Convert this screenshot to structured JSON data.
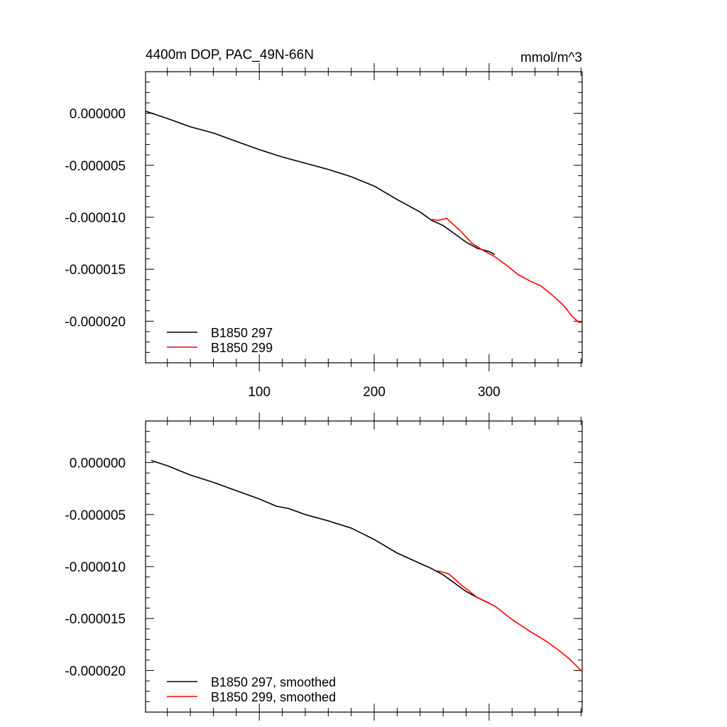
{
  "chart_data": [
    {
      "type": "line",
      "title": "4400m DOP, PAC_49N-66N",
      "units": "mmol/m^3",
      "xlim": [
        1,
        381
      ],
      "ylim": [
        -2.4e-05,
        4e-06
      ],
      "x_ticks": [
        100,
        200,
        300
      ],
      "x_tick_labels": [
        "100",
        "200",
        "300"
      ],
      "y_ticks": [
        0,
        -5e-06,
        -1e-05,
        -1.5e-05,
        -2e-05
      ],
      "y_tick_labels": [
        "0.000000",
        "-0.000005",
        "-0.000010",
        "-0.000015",
        "-0.000020"
      ],
      "grid": false,
      "legend_position": "bottom-left",
      "series": [
        {
          "name": "B1850 297",
          "color": "#000000",
          "x": [
            1,
            20,
            40,
            60,
            80,
            100,
            120,
            140,
            160,
            180,
            200,
            220,
            240,
            250,
            260,
            270,
            280,
            290,
            300,
            305
          ],
          "y": [
            2e-07,
            -5e-07,
            -1.3e-06,
            -1.9e-06,
            -2.7e-06,
            -3.5e-06,
            -4.2e-06,
            -4.8e-06,
            -5.4e-06,
            -6.1e-06,
            -7e-06,
            -8.3e-06,
            -9.5e-06,
            -1.03e-05,
            -1.08e-05,
            -1.16e-05,
            -1.24e-05,
            -1.3e-05,
            -1.33e-05,
            -1.36e-05
          ]
        },
        {
          "name": "B1850 299",
          "color": "#ff0000",
          "x": [
            250,
            255,
            260,
            263,
            268,
            275,
            285,
            295,
            305,
            315,
            325,
            335,
            345,
            355,
            365,
            372,
            378,
            381
          ],
          "y": [
            -1.02e-05,
            -1.03e-05,
            -1.02e-05,
            -1.01e-05,
            -1.06e-05,
            -1.13e-05,
            -1.25e-05,
            -1.32e-05,
            -1.38e-05,
            -1.46e-05,
            -1.55e-05,
            -1.61e-05,
            -1.66e-05,
            -1.75e-05,
            -1.85e-05,
            -1.95e-05,
            -2.01e-05,
            -2.01e-05
          ]
        }
      ]
    },
    {
      "type": "line",
      "xlim": [
        1,
        381
      ],
      "ylim": [
        -2.4e-05,
        4e-06
      ],
      "x_ticks": [
        100,
        200,
        300
      ],
      "y_ticks": [
        0,
        -5e-06,
        -1e-05,
        -1.5e-05,
        -2e-05
      ],
      "y_tick_labels": [
        "0.000000",
        "-0.000005",
        "-0.000010",
        "-0.000015",
        "-0.000020"
      ],
      "grid": false,
      "legend_position": "bottom-left",
      "series": [
        {
          "name": "B1850 297, smoothed",
          "color": "#000000",
          "x": [
            6,
            20,
            40,
            60,
            80,
            100,
            115,
            125,
            140,
            160,
            180,
            200,
            220,
            240,
            250,
            260,
            270,
            280,
            290,
            300
          ],
          "y": [
            2e-07,
            -3e-07,
            -1.2e-06,
            -1.9e-06,
            -2.7e-06,
            -3.5e-06,
            -4.2e-06,
            -4.4e-06,
            -5e-06,
            -5.6e-06,
            -6.3e-06,
            -7.4e-06,
            -8.7e-06,
            -9.7e-06,
            -1.02e-05,
            -1.08e-05,
            -1.16e-05,
            -1.24e-05,
            -1.3e-05,
            -1.35e-05
          ]
        },
        {
          "name": "B1850 299, smoothed",
          "color": "#ff0000",
          "x": [
            255,
            265,
            275,
            290,
            305,
            320,
            335,
            350,
            360,
            370,
            381
          ],
          "y": [
            -1.04e-05,
            -1.07e-05,
            -1.17e-05,
            -1.3e-05,
            -1.38e-05,
            -1.51e-05,
            -1.62e-05,
            -1.72e-05,
            -1.8e-05,
            -1.89e-05,
            -2.01e-05
          ]
        }
      ]
    }
  ]
}
